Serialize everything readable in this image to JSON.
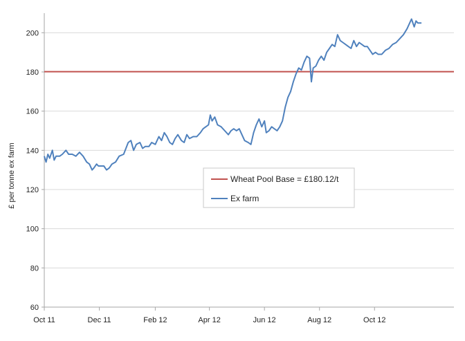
{
  "chart_data": {
    "type": "line",
    "title": "",
    "xlabel": "",
    "ylabel": "£ per tonne ex farm",
    "ylim": [
      60,
      210
    ],
    "yticks": [
      60,
      80,
      100,
      120,
      140,
      160,
      180,
      200
    ],
    "xlim": [
      "2011-10-01",
      "2012-12-28"
    ],
    "xticks": [
      {
        "date": "2011-10-01",
        "label": "Oct 11"
      },
      {
        "date": "2011-12-01",
        "label": "Dec 11"
      },
      {
        "date": "2012-02-01",
        "label": "Feb 12"
      },
      {
        "date": "2012-04-01",
        "label": "Apr 12"
      },
      {
        "date": "2012-06-01",
        "label": "Jun 12"
      },
      {
        "date": "2012-08-01",
        "label": "Aug 12"
      },
      {
        "date": "2012-10-01",
        "label": "Oct 12"
      }
    ],
    "grid": "horizontal",
    "legend_placement": "center",
    "colors": {
      "wheat_pool": "#c0504d",
      "ex_farm": "#4f81bd",
      "grid": "#d9d9d9",
      "axis": "#a6a6a6"
    },
    "series": [
      {
        "name": "Wheat Pool Base = £180.12/t",
        "type": "hline",
        "value": 180.12
      },
      {
        "name": "Ex farm",
        "type": "line",
        "points": [
          [
            "2011-10-01",
            137
          ],
          [
            "2011-10-03",
            134
          ],
          [
            "2011-10-05",
            138
          ],
          [
            "2011-10-07",
            136
          ],
          [
            "2011-10-10",
            140
          ],
          [
            "2011-10-12",
            135
          ],
          [
            "2011-10-14",
            137
          ],
          [
            "2011-10-18",
            137
          ],
          [
            "2011-10-21",
            138
          ],
          [
            "2011-10-25",
            140
          ],
          [
            "2011-10-28",
            138
          ],
          [
            "2011-11-01",
            138
          ],
          [
            "2011-11-05",
            137
          ],
          [
            "2011-11-09",
            139
          ],
          [
            "2011-11-13",
            137
          ],
          [
            "2011-11-17",
            134
          ],
          [
            "2011-11-20",
            133
          ],
          [
            "2011-11-23",
            130
          ],
          [
            "2011-11-25",
            131
          ],
          [
            "2011-11-28",
            133
          ],
          [
            "2011-11-30",
            132
          ],
          [
            "2011-12-03",
            132
          ],
          [
            "2011-12-06",
            132
          ],
          [
            "2011-12-09",
            130
          ],
          [
            "2011-12-12",
            131
          ],
          [
            "2011-12-15",
            133
          ],
          [
            "2011-12-19",
            134
          ],
          [
            "2011-12-23",
            137
          ],
          [
            "2011-12-28",
            138
          ],
          [
            "2012-01-02",
            144
          ],
          [
            "2012-01-05",
            145
          ],
          [
            "2012-01-08",
            140
          ],
          [
            "2012-01-11",
            143
          ],
          [
            "2012-01-15",
            144
          ],
          [
            "2012-01-18",
            141
          ],
          [
            "2012-01-21",
            142
          ],
          [
            "2012-01-25",
            142
          ],
          [
            "2012-01-28",
            144
          ],
          [
            "2012-02-01",
            143
          ],
          [
            "2012-02-05",
            147
          ],
          [
            "2012-02-08",
            145
          ],
          [
            "2012-02-11",
            149
          ],
          [
            "2012-02-14",
            147
          ],
          [
            "2012-02-17",
            144
          ],
          [
            "2012-02-20",
            143
          ],
          [
            "2012-02-23",
            146
          ],
          [
            "2012-02-26",
            148
          ],
          [
            "2012-03-01",
            145
          ],
          [
            "2012-03-04",
            144
          ],
          [
            "2012-03-07",
            148
          ],
          [
            "2012-03-10",
            146
          ],
          [
            "2012-03-14",
            147
          ],
          [
            "2012-03-18",
            147
          ],
          [
            "2012-03-22",
            149
          ],
          [
            "2012-03-25",
            151
          ],
          [
            "2012-03-28",
            152
          ],
          [
            "2012-03-31",
            153
          ],
          [
            "2012-04-02",
            158
          ],
          [
            "2012-04-04",
            155
          ],
          [
            "2012-04-07",
            157
          ],
          [
            "2012-04-10",
            153
          ],
          [
            "2012-04-14",
            152
          ],
          [
            "2012-04-18",
            150
          ],
          [
            "2012-04-22",
            148
          ],
          [
            "2012-04-25",
            150
          ],
          [
            "2012-04-28",
            151
          ],
          [
            "2012-05-01",
            150
          ],
          [
            "2012-05-04",
            151
          ],
          [
            "2012-05-07",
            148
          ],
          [
            "2012-05-10",
            145
          ],
          [
            "2012-05-14",
            144
          ],
          [
            "2012-05-17",
            143
          ],
          [
            "2012-05-20",
            149
          ],
          [
            "2012-05-23",
            153
          ],
          [
            "2012-05-26",
            156
          ],
          [
            "2012-05-29",
            152
          ],
          [
            "2012-06-01",
            155
          ],
          [
            "2012-06-03",
            149
          ],
          [
            "2012-06-06",
            150
          ],
          [
            "2012-06-09",
            152
          ],
          [
            "2012-06-12",
            151
          ],
          [
            "2012-06-15",
            150
          ],
          [
            "2012-06-18",
            152
          ],
          [
            "2012-06-21",
            155
          ],
          [
            "2012-06-24",
            162
          ],
          [
            "2012-06-27",
            167
          ],
          [
            "2012-06-30",
            170
          ],
          [
            "2012-07-03",
            175
          ],
          [
            "2012-07-06",
            179
          ],
          [
            "2012-07-09",
            182
          ],
          [
            "2012-07-12",
            181
          ],
          [
            "2012-07-15",
            185
          ],
          [
            "2012-07-18",
            188
          ],
          [
            "2012-07-21",
            187
          ],
          [
            "2012-07-23",
            175
          ],
          [
            "2012-07-25",
            182
          ],
          [
            "2012-07-28",
            183
          ],
          [
            "2012-07-31",
            186
          ],
          [
            "2012-08-03",
            188
          ],
          [
            "2012-08-06",
            186
          ],
          [
            "2012-08-09",
            190
          ],
          [
            "2012-08-12",
            192
          ],
          [
            "2012-08-15",
            194
          ],
          [
            "2012-08-18",
            193
          ],
          [
            "2012-08-21",
            199
          ],
          [
            "2012-08-24",
            196
          ],
          [
            "2012-08-27",
            195
          ],
          [
            "2012-08-30",
            194
          ],
          [
            "2012-09-02",
            193
          ],
          [
            "2012-09-05",
            192
          ],
          [
            "2012-09-08",
            196
          ],
          [
            "2012-09-11",
            193
          ],
          [
            "2012-09-14",
            195
          ],
          [
            "2012-09-17",
            194
          ],
          [
            "2012-09-20",
            193
          ],
          [
            "2012-09-23",
            193
          ],
          [
            "2012-09-26",
            191
          ],
          [
            "2012-09-29",
            189
          ],
          [
            "2012-10-02",
            190
          ],
          [
            "2012-10-05",
            189
          ],
          [
            "2012-10-09",
            189
          ],
          [
            "2012-10-13",
            191
          ],
          [
            "2012-10-17",
            192
          ],
          [
            "2012-10-21",
            194
          ],
          [
            "2012-10-25",
            195
          ],
          [
            "2012-10-29",
            197
          ],
          [
            "2012-11-02",
            199
          ],
          [
            "2012-11-06",
            202
          ],
          [
            "2012-11-09",
            205
          ],
          [
            "2012-11-11",
            207
          ],
          [
            "2012-11-14",
            203
          ],
          [
            "2012-11-16",
            206
          ],
          [
            "2012-11-18",
            205
          ],
          [
            "2012-11-22",
            205
          ]
        ]
      }
    ]
  }
}
